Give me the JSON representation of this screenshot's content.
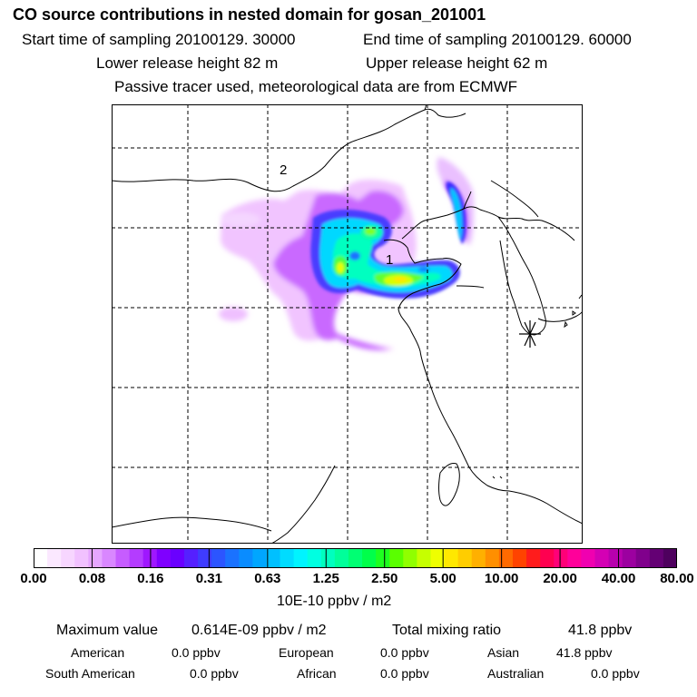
{
  "header": {
    "title": "CO  source contributions in nested domain for gosan_201001",
    "start_time": "Start time of sampling 20100129. 30000",
    "end_time": "End time of sampling 20100129. 60000",
    "lower_release": "Lower release height   82 m",
    "upper_release": "Upper release height   62 m",
    "passive_note": "Passive tracer used, meteorological data are from ECMWF"
  },
  "map": {
    "label_1": "1",
    "label_2": "2",
    "receptor_icon": "asterisk-receptor-icon"
  },
  "colorbar": {
    "ticks": [
      "0.00",
      "0.08",
      "0.16",
      "0.31",
      "0.63",
      "1.25",
      "2.50",
      "5.00",
      "10.00",
      "20.00",
      "40.00",
      "80.00"
    ],
    "units": "10E-10 ppbv / m2",
    "colors": [
      "#ffffff",
      "#fbe8ff",
      "#f7d6ff",
      "#f1c1ff",
      "#e6a6ff",
      "#d987ff",
      "#c65cff",
      "#b43cff",
      "#9f17ff",
      "#7f00ff",
      "#6a00ff",
      "#5520ff",
      "#3f3cff",
      "#2c55ff",
      "#1a72ff",
      "#0a8cff",
      "#00a6ff",
      "#00c0ff",
      "#00dcff",
      "#00f4ff",
      "#00ffe1",
      "#00ffbf",
      "#00ff9a",
      "#00ff73",
      "#00ff4a",
      "#1eff20",
      "#5aff00",
      "#90ff00",
      "#c6ff00",
      "#efff00",
      "#ffe800",
      "#ffcd00",
      "#ffb000",
      "#ff8f00",
      "#ff6a00",
      "#ff4300",
      "#ff1c1c",
      "#ff0050",
      "#ff0078",
      "#ff009a",
      "#f000b0",
      "#d400b4",
      "#b800ae",
      "#9c00a0",
      "#80008c",
      "#640074",
      "#4e005e"
    ]
  },
  "stats": {
    "max_label": "Maximum value",
    "max_value": "0.614E-09 ppbv / m2",
    "total_label": "Total mixing ratio",
    "total_value": "41.8 ppbv",
    "american_label": "American",
    "american_value": "0.0 ppbv",
    "european_label": "European",
    "european_value": "0.0 ppbv",
    "asian_label": "Asian",
    "asian_value": "41.8 ppbv",
    "south_american_label": "South American",
    "south_american_value": "0.0 ppbv",
    "african_label": "African",
    "african_value": "0.0 ppbv",
    "australian_label": "Australian",
    "australian_value": "0.0 ppbv"
  }
}
